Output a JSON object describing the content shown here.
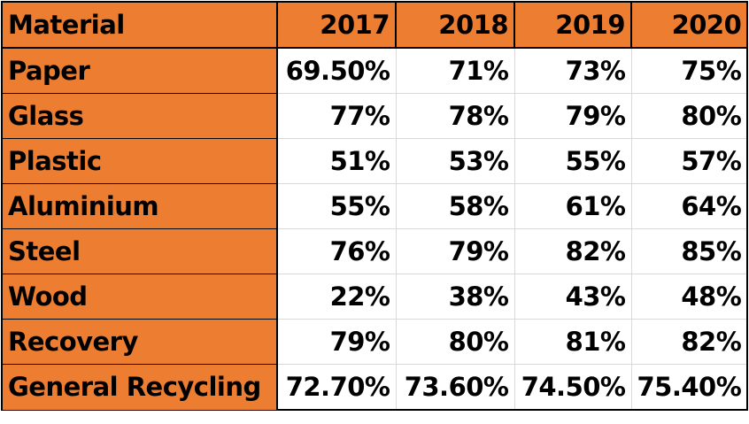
{
  "chart_data": {
    "type": "table",
    "header_label": "Material",
    "columns": [
      "2017",
      "2018",
      "2019",
      "2020"
    ],
    "rows": [
      {
        "label": "Paper",
        "values": [
          "69.50%",
          "71%",
          "73%",
          "75%"
        ]
      },
      {
        "label": "Glass",
        "values": [
          "77%",
          "78%",
          "79%",
          "80%"
        ]
      },
      {
        "label": "Plastic",
        "values": [
          "51%",
          "53%",
          "55%",
          "57%"
        ]
      },
      {
        "label": "Aluminium",
        "values": [
          "55%",
          "58%",
          "61%",
          "64%"
        ]
      },
      {
        "label": "Steel",
        "values": [
          "76%",
          "79%",
          "82%",
          "85%"
        ]
      },
      {
        "label": "Wood",
        "values": [
          "22%",
          "38%",
          "43%",
          "48%"
        ]
      },
      {
        "label": "Recovery",
        "values": [
          "79%",
          "80%",
          "81%",
          "82%"
        ]
      },
      {
        "label": "General Recycling",
        "values": [
          "72.70%",
          "73.60%",
          "74.50%",
          "75.40%"
        ]
      }
    ],
    "colors": {
      "header_fill": "#ed7d31",
      "cell_fill": "#ffffff",
      "text": "#000000"
    }
  }
}
